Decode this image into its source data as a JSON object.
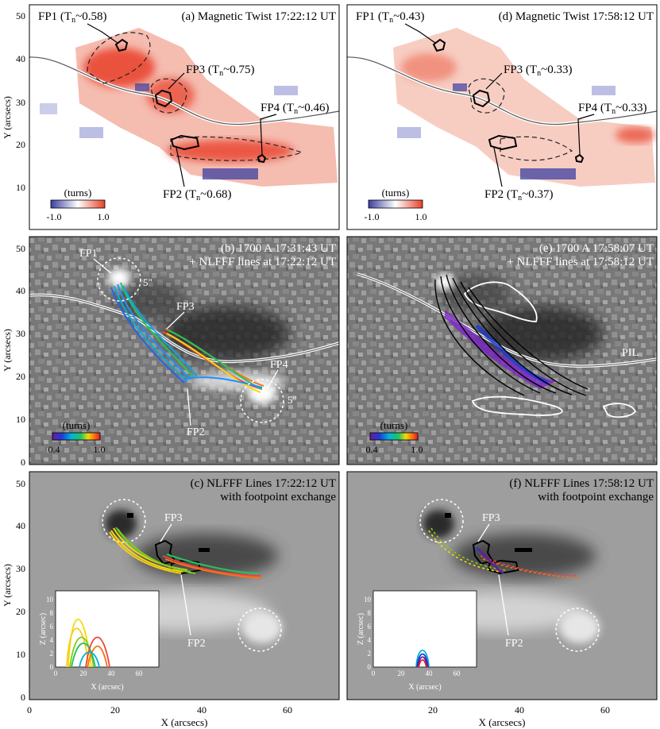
{
  "panels": {
    "a": {
      "title": "(a) Magnetic Twist 17:22:12 UT",
      "fp1": "FP1 (T",
      "fp1v": "~0.58)",
      "fp2": "FP2 (T",
      "fp2v": "~0.68)",
      "fp3": "FP3 (T",
      "fp3v": "~0.75)",
      "fp4": "FP4 (T",
      "fp4v": "~0.46)"
    },
    "d": {
      "title": "(d) Magnetic Twist 17:58:12 UT",
      "fp1": "FP1 (T",
      "fp1v": "~0.43)",
      "fp2": "FP2 (T",
      "fp2v": "~0.37)",
      "fp3": "FP3 (T",
      "fp3v": "~0.33)",
      "fp4": "FP4 (T",
      "fp4v": "~0.33)"
    },
    "b": {
      "title1": "(b) 1700 A 17:31:43 UT",
      "title2": "+ NLFFF lines at 17:22:12 UT",
      "fp1": "FP1",
      "fp2": "FP2",
      "fp3": "FP3",
      "fp4": "FP4",
      "arc1": "5\"",
      "arc2": "5\""
    },
    "e": {
      "title1": "(e) 1700 A 17:58:07 UT",
      "title2": "+ NLFFF lines at 17:58:12 UT",
      "pil": "PIL"
    },
    "c": {
      "title1": "(c) NLFFF Lines 17:22:12 UT",
      "title2": "with footpoint exchange",
      "fp2": "FP2",
      "fp3": "FP3"
    },
    "f": {
      "title1": "(f) NLFFF Lines 17:58:12 UT",
      "title2": "with footpoint exchange",
      "fp2": "FP2",
      "fp3": "FP3"
    }
  },
  "subscript_n": "n",
  "colorbar_twist": {
    "label": "(turns)",
    "min": "-1.0",
    "max": "1.0"
  },
  "colorbar_lines": {
    "label": "(turns)",
    "min": "0.4",
    "max": "1.0"
  },
  "axes": {
    "xlabel": "X (arcsecs)",
    "ylabel": "Y (arcsecs)",
    "xticks": [
      "0",
      "20",
      "40",
      "60"
    ],
    "yticks": [
      "10",
      "20",
      "30",
      "40",
      "50"
    ],
    "yticks_bottom": [
      "0",
      "10",
      "20",
      "30",
      "40",
      "50"
    ]
  },
  "inset": {
    "xlabel": "X (arcsec)",
    "ylabel": "Z (arcsec)",
    "xticks": [
      "0",
      "20",
      "40",
      "60"
    ],
    "yticks": [
      "0",
      "2",
      "4",
      "6",
      "8",
      "10"
    ]
  },
  "colors": {
    "twist_pos": "#e8402a",
    "twist_neg": "#3b3fa0",
    "cbar_lines": [
      "#6a1b9a",
      "#1e3cd8",
      "#00b4d8",
      "#22c55e",
      "#f5d90a",
      "#f97316",
      "#e11d1d"
    ]
  }
}
